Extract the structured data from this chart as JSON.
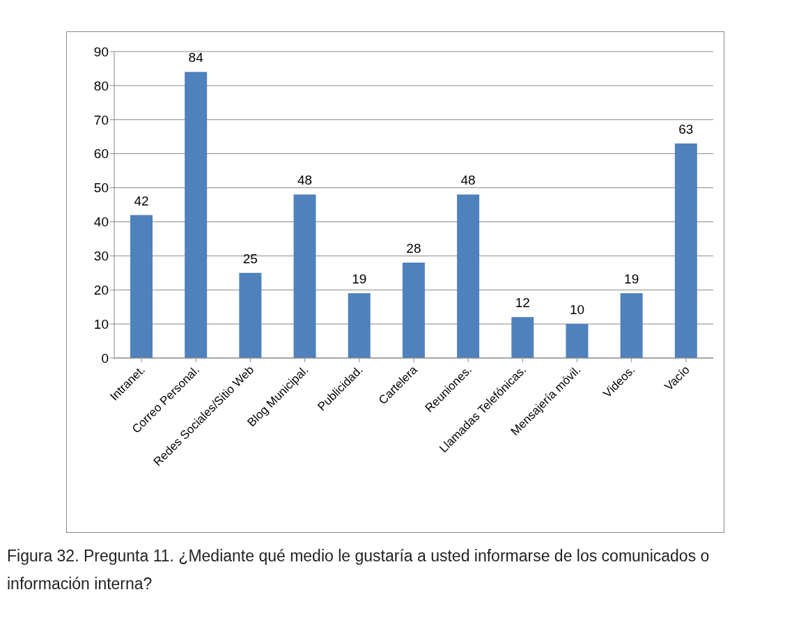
{
  "chart_data": {
    "type": "bar",
    "categories": [
      "Intranet.",
      "Correo Personal.",
      "Redes Sociales/Sitio Web",
      "Blog Municipal.",
      "Publicidad.",
      "Cartelera",
      "Reuniones.",
      "Llamadas Telefónicas.",
      "Mensajería móvil.",
      "Videos.",
      "Vacío"
    ],
    "values": [
      42,
      84,
      25,
      48,
      19,
      28,
      48,
      12,
      10,
      19,
      63
    ],
    "color": "#4f81bd",
    "ylim": [
      0,
      90
    ],
    "yticks": [
      0,
      10,
      20,
      30,
      40,
      50,
      60,
      70,
      80,
      90
    ],
    "grid": "y",
    "data_labels": true,
    "annotations": [
      "Figura 32. Pregunta 11. ¿Mediante qué medio le gustaría a usted informarse de los comunicados o información interna?"
    ]
  }
}
